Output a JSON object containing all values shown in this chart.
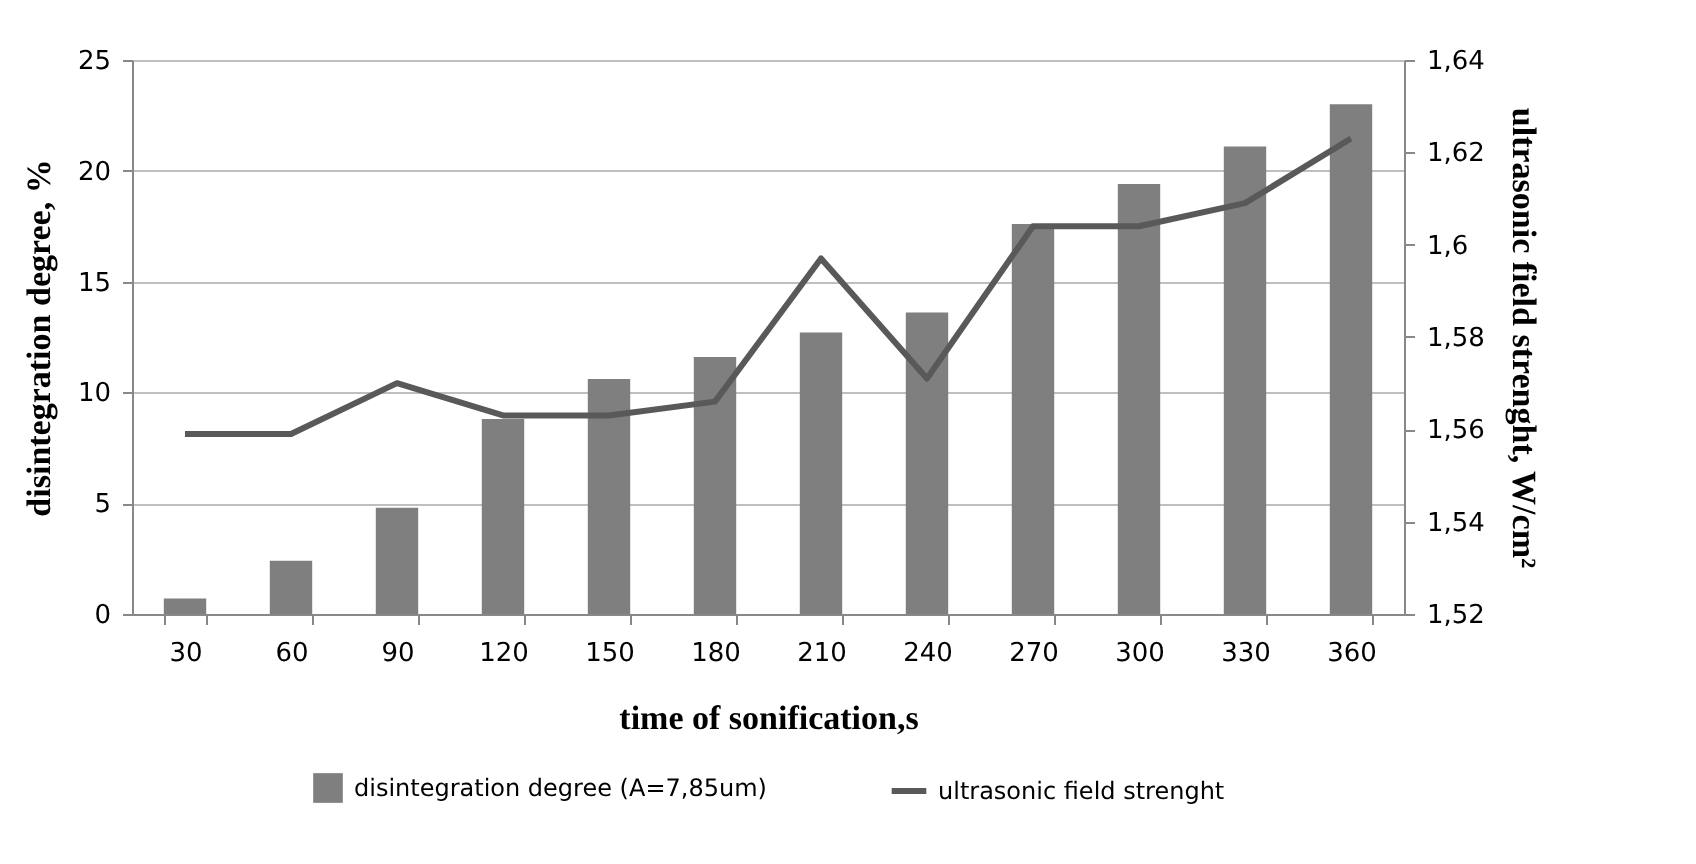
{
  "chart_data": {
    "type": "bar",
    "xlabel": "time of sonification,s",
    "ylabel": "disintegration degree, %",
    "y2label": "ultrasonic field strenght, W/cm²",
    "categories": [
      "30",
      "60",
      "90",
      "120",
      "150",
      "180",
      "210",
      "240",
      "270",
      "300",
      "330",
      "360"
    ],
    "series": [
      {
        "name": "disintegration degree (A=7,85um)",
        "color": "#7f7f7f",
        "values": [
          0.7,
          2.4,
          4.8,
          8.8,
          10.6,
          11.6,
          12.7,
          13.6,
          17.6,
          19.4,
          21.1,
          23.0
        ]
      },
      {
        "name": "ultrasonic field strenght",
        "type": "line",
        "axis": "y2",
        "color": "#595959",
        "values": [
          1.559,
          1.559,
          1.57,
          1.563,
          1.563,
          1.566,
          1.597,
          1.571,
          1.604,
          1.604,
          1.609,
          1.623
        ]
      }
    ],
    "ylim": [
      0,
      25
    ],
    "yticks": [
      0,
      5,
      10,
      15,
      20,
      25
    ],
    "y2lim": [
      1.52,
      1.64
    ],
    "y2ticks": [
      {
        "value": 1.52,
        "label": "1,52"
      },
      {
        "value": 1.54,
        "label": "1,54"
      },
      {
        "value": 1.56,
        "label": "1,56"
      },
      {
        "value": 1.58,
        "label": "1,58"
      },
      {
        "value": 1.6,
        "label": "1,6"
      },
      {
        "value": 1.62,
        "label": "1,62"
      },
      {
        "value": 1.64,
        "label": "1,64"
      }
    ],
    "grid": "y",
    "legend": "bottom",
    "marker": "none",
    "line_style": "solid"
  }
}
